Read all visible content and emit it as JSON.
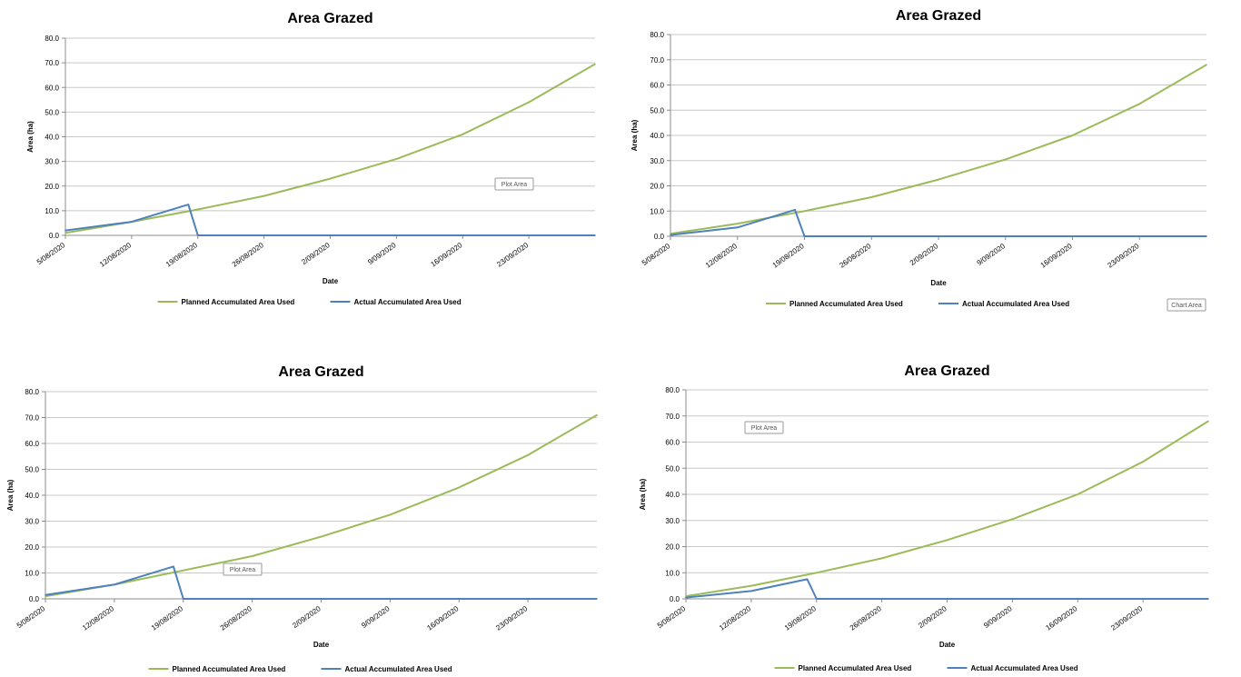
{
  "colors": {
    "planned": "#9bbb59",
    "actual": "#4f81bd",
    "grid": "#c8c8c8",
    "axis": "#8c8c8c",
    "text": "#000000"
  },
  "chart_data": [
    {
      "type": "line",
      "title": "Area Grazed",
      "xlabel": "Date",
      "ylabel": "Area (ha)",
      "yticks": [
        "0.0",
        "10.0",
        "20.0",
        "30.0",
        "40.0",
        "50.0",
        "60.0",
        "70.0",
        "80.0"
      ],
      "ylim": [
        0,
        80
      ],
      "x_tick_labels": [
        "5/08/2020",
        "12/08/2020",
        "19/08/2020",
        "26/08/2020",
        "2/09/2020",
        "9/09/2020",
        "16/09/2020",
        "23/09/2020"
      ],
      "x_start": "5/08/2020",
      "x_end": "30/09/2020",
      "grid": true,
      "legend": "bottom",
      "series": [
        {
          "name": "Planned Accumulated Area Used",
          "color": "planned",
          "points": [
            {
              "x": "5/08/2020",
              "y": 1.0
            },
            {
              "x": "12/08/2020",
              "y": 5.5
            },
            {
              "x": "19/08/2020",
              "y": 10.5
            },
            {
              "x": "26/08/2020",
              "y": 16.0
            },
            {
              "x": "2/09/2020",
              "y": 23.0
            },
            {
              "x": "9/09/2020",
              "y": 31.0
            },
            {
              "x": "16/09/2020",
              "y": 41.0
            },
            {
              "x": "23/09/2020",
              "y": 54.0
            },
            {
              "x": "30/09/2020",
              "y": 69.5
            }
          ]
        },
        {
          "name": "Actual Accumulated Area Used",
          "color": "actual",
          "points": [
            {
              "x": "5/08/2020",
              "y": 2.0
            },
            {
              "x": "12/08/2020",
              "y": 5.5
            },
            {
              "x": "18/08/2020",
              "y": 12.5
            },
            {
              "x": "19/08/2020",
              "y": 0.0
            },
            {
              "x": "30/09/2020",
              "y": 0.0
            }
          ]
        }
      ],
      "annotations": [
        "Plot Area"
      ]
    },
    {
      "type": "line",
      "title": "Area Grazed",
      "xlabel": "Date",
      "ylabel": "Area (ha)",
      "yticks": [
        "0.0",
        "10.0",
        "20.0",
        "30.0",
        "40.0",
        "50.0",
        "60.0",
        "70.0",
        "80.0"
      ],
      "ylim": [
        0,
        80
      ],
      "x_tick_labels": [
        "5/08/2020",
        "12/08/2020",
        "19/08/2020",
        "26/08/2020",
        "2/09/2020",
        "9/09/2020",
        "16/09/2020",
        "23/09/2020"
      ],
      "x_start": "5/08/2020",
      "x_end": "30/09/2020",
      "grid": true,
      "legend": "bottom",
      "series": [
        {
          "name": "Planned Accumulated Area Used",
          "color": "planned",
          "points": [
            {
              "x": "5/08/2020",
              "y": 1.0
            },
            {
              "x": "12/08/2020",
              "y": 5.0
            },
            {
              "x": "19/08/2020",
              "y": 10.0
            },
            {
              "x": "26/08/2020",
              "y": 15.5
            },
            {
              "x": "2/09/2020",
              "y": 22.5
            },
            {
              "x": "9/09/2020",
              "y": 30.5
            },
            {
              "x": "16/09/2020",
              "y": 40.0
            },
            {
              "x": "23/09/2020",
              "y": 52.5
            },
            {
              "x": "30/09/2020",
              "y": 68.0
            }
          ]
        },
        {
          "name": "Actual Accumulated Area Used",
          "color": "actual",
          "points": [
            {
              "x": "5/08/2020",
              "y": 0.5
            },
            {
              "x": "12/08/2020",
              "y": 3.5
            },
            {
              "x": "18/08/2020",
              "y": 10.5
            },
            {
              "x": "19/08/2020",
              "y": 0.0
            },
            {
              "x": "30/09/2020",
              "y": 0.0
            }
          ]
        }
      ],
      "annotations": [
        "Chart Area"
      ]
    },
    {
      "type": "line",
      "title": "Area Grazed",
      "xlabel": "Date",
      "ylabel": "Area (ha)",
      "yticks": [
        "0.0",
        "10.0",
        "20.0",
        "30.0",
        "40.0",
        "50.0",
        "60.0",
        "70.0",
        "80.0"
      ],
      "ylim": [
        0,
        80
      ],
      "x_tick_labels": [
        "5/08/2020",
        "12/08/2020",
        "19/08/2020",
        "26/08/2020",
        "2/09/2020",
        "9/09/2020",
        "16/09/2020",
        "23/09/2020"
      ],
      "x_start": "5/08/2020",
      "x_end": "30/09/2020",
      "grid": true,
      "legend": "bottom",
      "series": [
        {
          "name": "Planned Accumulated Area Used",
          "color": "planned",
          "points": [
            {
              "x": "5/08/2020",
              "y": 1.0
            },
            {
              "x": "12/08/2020",
              "y": 5.5
            },
            {
              "x": "19/08/2020",
              "y": 11.0
            },
            {
              "x": "26/08/2020",
              "y": 16.5
            },
            {
              "x": "2/09/2020",
              "y": 24.0
            },
            {
              "x": "9/09/2020",
              "y": 32.5
            },
            {
              "x": "16/09/2020",
              "y": 43.0
            },
            {
              "x": "23/09/2020",
              "y": 55.5
            },
            {
              "x": "30/09/2020",
              "y": 71.0
            }
          ]
        },
        {
          "name": "Actual Accumulated Area Used",
          "color": "actual",
          "points": [
            {
              "x": "5/08/2020",
              "y": 1.5
            },
            {
              "x": "12/08/2020",
              "y": 5.5
            },
            {
              "x": "18/08/2020",
              "y": 12.5
            },
            {
              "x": "19/08/2020",
              "y": 0.0
            },
            {
              "x": "30/09/2020",
              "y": 0.0
            }
          ]
        }
      ],
      "annotations": [
        "Plot Area"
      ]
    },
    {
      "type": "line",
      "title": "Area Grazed",
      "xlabel": "Date",
      "ylabel": "Area (ha)",
      "yticks": [
        "0.0",
        "10.0",
        "20.0",
        "30.0",
        "40.0",
        "50.0",
        "60.0",
        "70.0",
        "80.0"
      ],
      "ylim": [
        0,
        80
      ],
      "x_tick_labels": [
        "5/08/2020",
        "12/08/2020",
        "19/08/2020",
        "26/08/2020",
        "2/09/2020",
        "9/09/2020",
        "16/09/2020",
        "23/09/2020"
      ],
      "x_start": "5/08/2020",
      "x_end": "30/09/2020",
      "grid": true,
      "legend": "bottom",
      "series": [
        {
          "name": "Planned Accumulated Area Used",
          "color": "planned",
          "points": [
            {
              "x": "5/08/2020",
              "y": 1.0
            },
            {
              "x": "12/08/2020",
              "y": 5.0
            },
            {
              "x": "19/08/2020",
              "y": 10.0
            },
            {
              "x": "26/08/2020",
              "y": 15.5
            },
            {
              "x": "2/09/2020",
              "y": 22.5
            },
            {
              "x": "9/09/2020",
              "y": 30.5
            },
            {
              "x": "16/09/2020",
              "y": 40.0
            },
            {
              "x": "23/09/2020",
              "y": 52.5
            },
            {
              "x": "30/09/2020",
              "y": 68.0
            }
          ]
        },
        {
          "name": "Actual Accumulated Area Used",
          "color": "actual",
          "points": [
            {
              "x": "5/08/2020",
              "y": 0.5
            },
            {
              "x": "12/08/2020",
              "y": 3.0
            },
            {
              "x": "18/08/2020",
              "y": 7.5
            },
            {
              "x": "19/08/2020",
              "y": 0.0
            },
            {
              "x": "30/09/2020",
              "y": 0.0
            }
          ]
        }
      ],
      "annotations": [
        "Plot Area"
      ]
    }
  ]
}
